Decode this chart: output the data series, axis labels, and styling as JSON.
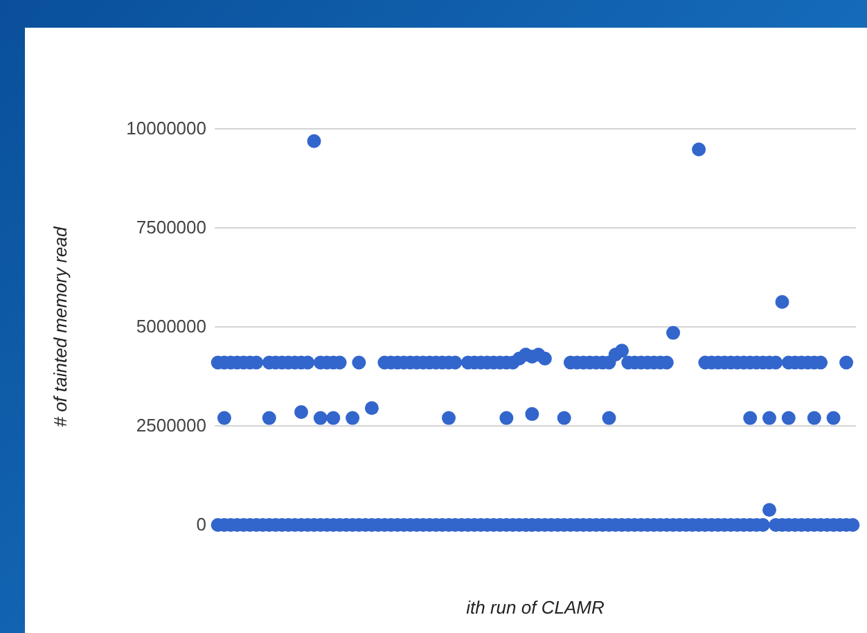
{
  "chart_data": {
    "type": "scatter",
    "xlabel": "ith run of CLAMR",
    "ylabel": "# of tainted memory read",
    "categories": [
      null,
      null,
      null,
      null,
      null,
      null,
      null,
      null,
      null,
      null,
      null,
      null,
      null,
      null,
      null,
      null,
      null,
      null,
      null,
      null,
      null,
      null,
      null,
      null,
      null,
      null,
      null,
      null,
      null,
      null,
      null,
      null,
      null,
      null,
      null,
      null,
      null,
      null,
      null,
      null,
      null,
      null,
      null,
      null,
      null,
      null,
      null,
      null,
      null,
      null,
      null,
      null,
      null,
      null,
      null,
      null,
      null,
      null,
      null,
      null,
      null,
      null,
      null,
      null,
      null,
      null,
      null,
      null,
      null,
      null,
      null,
      null,
      null,
      null,
      null,
      null,
      null,
      null,
      null,
      null,
      null,
      null,
      null,
      null,
      null,
      null,
      null,
      null,
      null,
      null,
      null,
      null,
      null,
      null,
      null,
      null,
      null,
      null,
      null,
      null
    ],
    "ylim": [
      0,
      10000000
    ],
    "yticks": [
      0,
      2500000,
      5000000,
      7500000,
      10000000
    ],
    "grid": "y",
    "marker": "circle",
    "tick_labels": "y",
    "series": [
      {
        "color": "#3366cc",
        "values": [
          4100000,
          4100000,
          4100000,
          4100000,
          4100000,
          4100000,
          4100000,
          null,
          4100000,
          4100000,
          4100000,
          4100000,
          4100000,
          4100000,
          4100000,
          9690000,
          4100000,
          4100000,
          4100000,
          4100000,
          null,
          null,
          4100000,
          null,
          null,
          null,
          4100000,
          4100000,
          4100000,
          4100000,
          4100000,
          4100000,
          4100000,
          4100000,
          4100000,
          4100000,
          4100000,
          4100000,
          null,
          4100000,
          4100000,
          4100000,
          4100000,
          4100000,
          4100000,
          4100000,
          4100000,
          4200000,
          4300000,
          4250000,
          4300000,
          4200000,
          null,
          null,
          null,
          4100000,
          4100000,
          4100000,
          4100000,
          4100000,
          4100000,
          4100000,
          4300000,
          4400000,
          4100000,
          4100000,
          4100000,
          4100000,
          4100000,
          4100000,
          4100000,
          4850000,
          null,
          null,
          null,
          9480000,
          4100000,
          4100000,
          4100000,
          4100000,
          4100000,
          4100000,
          4100000,
          4100000,
          4100000,
          4100000,
          4100000,
          4100000,
          5630000,
          4100000,
          4100000,
          4100000,
          4100000,
          4100000,
          4100000,
          null,
          null,
          null,
          4100000,
          null
        ]
      },
      {
        "color": "#3366cc",
        "values": [
          null,
          2700000,
          null,
          null,
          null,
          null,
          null,
          null,
          2700000,
          null,
          null,
          null,
          null,
          2850000,
          null,
          null,
          2700000,
          null,
          2700000,
          null,
          null,
          2700000,
          null,
          null,
          2950000,
          null,
          null,
          null,
          null,
          null,
          null,
          null,
          null,
          null,
          null,
          null,
          2700000,
          null,
          null,
          null,
          null,
          null,
          null,
          null,
          null,
          2700000,
          null,
          null,
          null,
          2800000,
          null,
          null,
          null,
          null,
          2700000,
          null,
          null,
          null,
          null,
          null,
          null,
          2700000,
          null,
          null,
          null,
          null,
          null,
          null,
          null,
          null,
          null,
          null,
          null,
          null,
          null,
          null,
          null,
          null,
          null,
          null,
          null,
          null,
          null,
          2700000,
          null,
          null,
          2700000,
          null,
          null,
          2700000,
          null,
          null,
          null,
          2700000,
          null,
          null,
          2700000,
          null,
          null,
          null
        ]
      },
      {
        "color": "#3366cc",
        "values": [
          0,
          0,
          0,
          0,
          0,
          0,
          0,
          0,
          0,
          0,
          0,
          0,
          0,
          0,
          0,
          0,
          0,
          0,
          0,
          0,
          0,
          0,
          0,
          0,
          0,
          0,
          0,
          0,
          0,
          0,
          0,
          0,
          0,
          0,
          0,
          0,
          0,
          0,
          0,
          0,
          0,
          0,
          0,
          0,
          0,
          0,
          0,
          0,
          0,
          0,
          0,
          0,
          0,
          0,
          0,
          0,
          0,
          0,
          0,
          0,
          0,
          0,
          0,
          0,
          0,
          0,
          0,
          0,
          0,
          0,
          0,
          0,
          0,
          0,
          0,
          0,
          0,
          0,
          0,
          0,
          0,
          0,
          0,
          0,
          0,
          0,
          380000,
          0,
          0,
          0,
          0,
          0,
          0,
          0,
          0,
          0,
          0,
          0,
          0,
          0
        ]
      }
    ]
  }
}
